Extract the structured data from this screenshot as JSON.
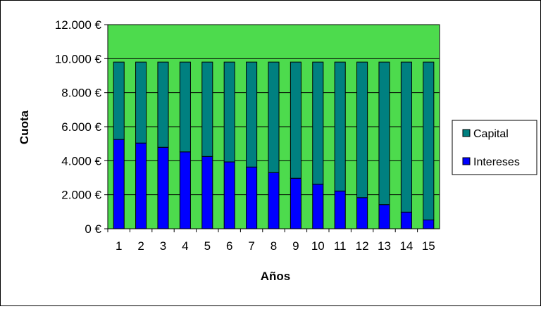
{
  "chart_data": {
    "type": "bar",
    "stacked": true,
    "xlabel": "Años",
    "ylabel": "Cuota",
    "ylim": [
      0,
      12000
    ],
    "y_ticks": [
      0,
      2000,
      4000,
      6000,
      8000,
      10000,
      12000
    ],
    "y_tick_labels": [
      "0 €",
      "2.000 €",
      "4.000 €",
      "6.000 €",
      "8.000 €",
      "10.000 €",
      "12.000 €"
    ],
    "categories": [
      "1",
      "2",
      "3",
      "4",
      "5",
      "6",
      "7",
      "8",
      "9",
      "10",
      "11",
      "12",
      "13",
      "14",
      "15"
    ],
    "series": [
      {
        "name": "Intereses",
        "color": "#0000FF",
        "values": [
          5250,
          5040,
          4790,
          4520,
          4250,
          3930,
          3630,
          3300,
          2970,
          2620,
          2220,
          1830,
          1420,
          980,
          520
        ]
      },
      {
        "name": "Capital",
        "color": "#008080",
        "values": [
          4550,
          4760,
          5010,
          5280,
          5550,
          5870,
          6170,
          6500,
          6830,
          7180,
          7580,
          7970,
          8380,
          8820,
          9280
        ]
      }
    ],
    "legend": [
      "Capital",
      "Intereses"
    ],
    "legend_position": "right",
    "plot_background": "#4DDB4D",
    "grid": true
  }
}
